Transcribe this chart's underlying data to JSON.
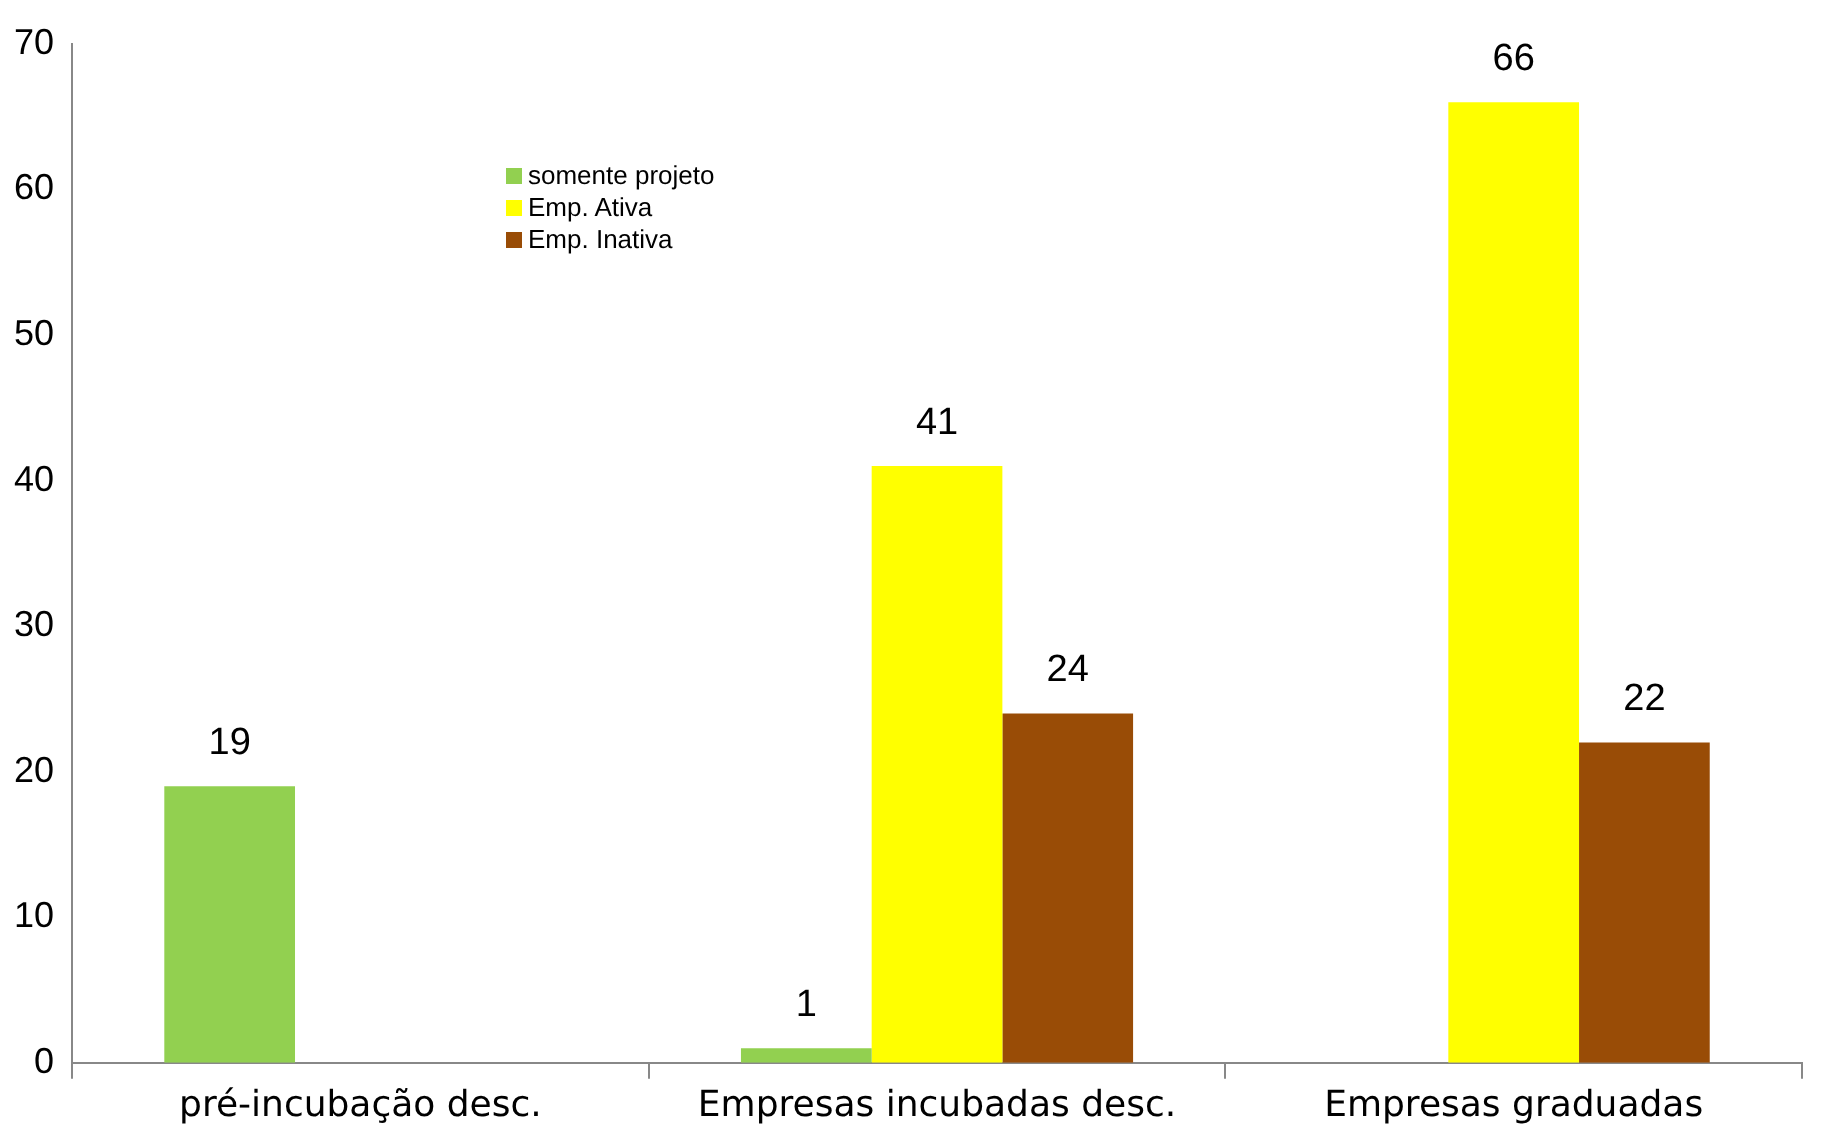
{
  "chart_data": {
    "type": "bar",
    "categories": [
      "pré-incubação desc.",
      "Empresas incubadas desc.",
      "Empresas graduadas"
    ],
    "series": [
      {
        "name": "somente projeto",
        "color": "#92d050",
        "values": [
          19,
          1,
          null
        ]
      },
      {
        "name": "Emp. Ativa",
        "color": "#ffff00",
        "values": [
          null,
          41,
          66
        ]
      },
      {
        "name": "Emp. Inativa",
        "color": "#994c06",
        "values": [
          null,
          24,
          22
        ]
      }
    ],
    "ylim": [
      0,
      70
    ],
    "yticks": [
      0,
      10,
      20,
      30,
      40,
      50,
      60,
      70
    ],
    "grid": false,
    "legend": "top left",
    "data_labels": true
  }
}
